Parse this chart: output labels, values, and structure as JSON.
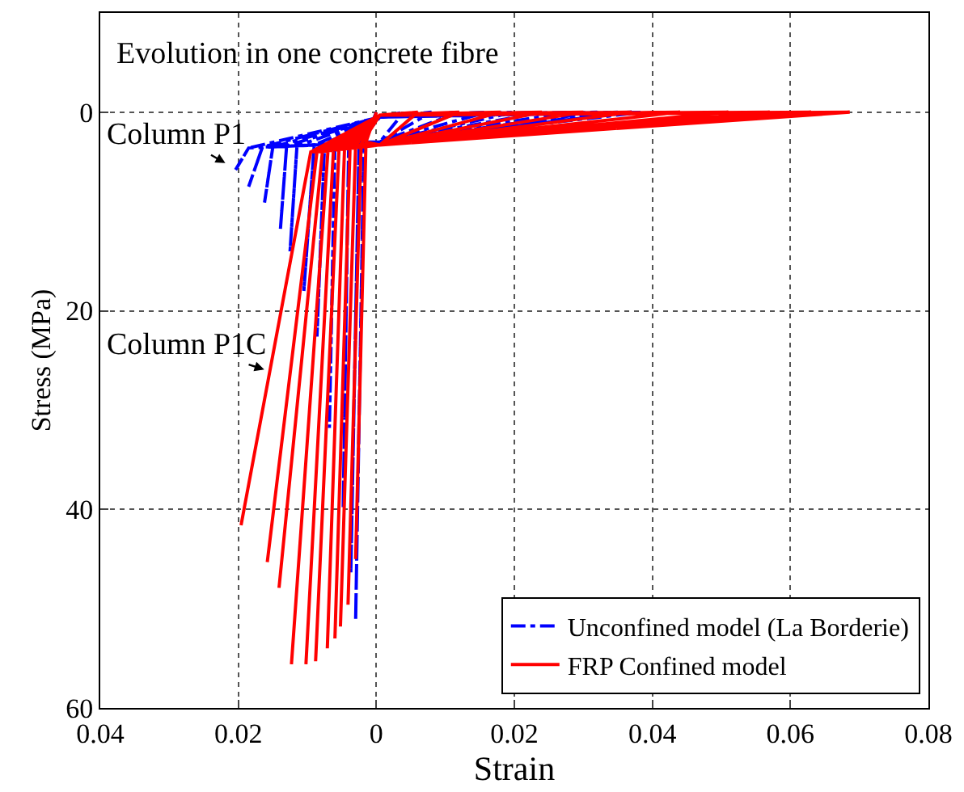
{
  "chart_data": {
    "type": "line",
    "xlabel": "Strain",
    "ylabel": "Stress (MPa)",
    "xlim": [
      -0.04,
      0.08
    ],
    "ylim": [
      60,
      -10
    ],
    "xticks": [
      {
        "value": -0.04,
        "label": "0.04"
      },
      {
        "value": -0.02,
        "label": "0.02"
      },
      0,
      0.02,
      0.04,
      0.06,
      0.08
    ],
    "yticks": [
      0,
      20,
      40,
      60
    ],
    "grid": true,
    "legend": "bottom right",
    "annotations": [
      "Evolution in one concrete fibre",
      "Column P1",
      "Column P1C"
    ],
    "series": [
      {
        "name": "Unconfined model (La Borderie)",
        "color": "#0000ff",
        "line_style": "dashdot",
        "x": [
          0,
          -0.0018,
          -0.003,
          -0.0018,
          0.0005,
          0.004,
          0.0005,
          -0.0025,
          -0.0037,
          -0.0025,
          0.0005,
          0.008,
          0.0005,
          -0.004,
          -0.0048,
          -0.004,
          0.0005,
          0.012,
          0.0005,
          -0.006,
          -0.0068,
          -0.006,
          0.0005,
          0.016,
          0.0005,
          -0.0075,
          -0.0086,
          -0.0075,
          0.0005,
          0.02,
          0.0005,
          -0.009,
          -0.0105,
          -0.009,
          0.0005,
          0.024,
          0.0005,
          -0.0115,
          -0.0125,
          -0.0115,
          0.0005,
          0.028,
          0.0005,
          -0.013,
          -0.0139,
          -0.013,
          0.0005,
          0.032,
          0.0005,
          -0.015,
          -0.0162,
          -0.015,
          0.0005,
          0.035,
          0.0005,
          -0.0165,
          -0.0185,
          -0.0165,
          0.0005,
          0.037,
          0.0005,
          -0.0185,
          -0.0204,
          -0.0185,
          0.0005,
          0.0386,
          0.0005
        ],
        "values": [
          0,
          3,
          51.2,
          3,
          3,
          0,
          0.5,
          3,
          46.4,
          3,
          3,
          0,
          0.5,
          3.1,
          39.9,
          3.1,
          3,
          0,
          0.5,
          3.2,
          31.8,
          3.2,
          3,
          0,
          0.5,
          3.2,
          22.6,
          3.2,
          3,
          0,
          0.5,
          3.3,
          18,
          3.3,
          3,
          0,
          0.5,
          3.4,
          14,
          3.4,
          3,
          0,
          0.5,
          3.4,
          11.8,
          3.4,
          3,
          0,
          0.5,
          3.5,
          9.1,
          3.5,
          3,
          0,
          0.5,
          3.5,
          7.5,
          3.5,
          3,
          0,
          0.5,
          3.6,
          5.8,
          3.6,
          3,
          0,
          0.5
        ]
      },
      {
        "name": "FRP Confined model",
        "color": "#ff0000",
        "line_style": "solid",
        "x": [
          0,
          -0.0015,
          -0.003,
          -0.0015,
          0.0005,
          0.006,
          0.0005,
          -0.0022,
          -0.0041,
          -0.0022,
          0.0005,
          0.012,
          0.0005,
          -0.003,
          -0.0052,
          -0.003,
          0.0005,
          0.018,
          0.0005,
          -0.0038,
          -0.006,
          -0.0038,
          0.0005,
          0.024,
          0.0005,
          -0.0046,
          -0.0071,
          -0.0046,
          0.0005,
          0.03,
          0.0005,
          -0.0054,
          -0.0088,
          -0.0054,
          0.0005,
          0.037,
          0.0005,
          -0.0062,
          -0.0102,
          -0.0062,
          0.0005,
          0.044,
          0.0005,
          -0.007,
          -0.0123,
          -0.007,
          0.0005,
          0.051,
          0.0005,
          -0.0078,
          -0.0141,
          -0.0078,
          0.0005,
          0.057,
          0.0005,
          -0.0086,
          -0.0158,
          -0.0086,
          0.0005,
          0.063,
          0.0005,
          -0.0095,
          -0.0196,
          -0.0095,
          0.0005,
          0.0686,
          0.0005
        ],
        "values": [
          0,
          3,
          45,
          3,
          3.3,
          0,
          0.3,
          3.2,
          49.6,
          3.2,
          3.3,
          0,
          0.3,
          3.3,
          51.8,
          3.3,
          3.3,
          0,
          0.3,
          3.4,
          53,
          3.4,
          3.3,
          0,
          0.3,
          3.5,
          54,
          3.5,
          3.3,
          0,
          0.3,
          3.6,
          55.3,
          3.6,
          3.3,
          0,
          0.3,
          3.7,
          55.6,
          3.7,
          3.3,
          0,
          0.3,
          3.8,
          55.6,
          3.8,
          3.3,
          0,
          0.3,
          3.9,
          47.9,
          3.9,
          3.3,
          0,
          0.3,
          4,
          45.3,
          4,
          3.3,
          0,
          0.3,
          4,
          41.6,
          4,
          3.3,
          0,
          0.3
        ]
      }
    ]
  }
}
